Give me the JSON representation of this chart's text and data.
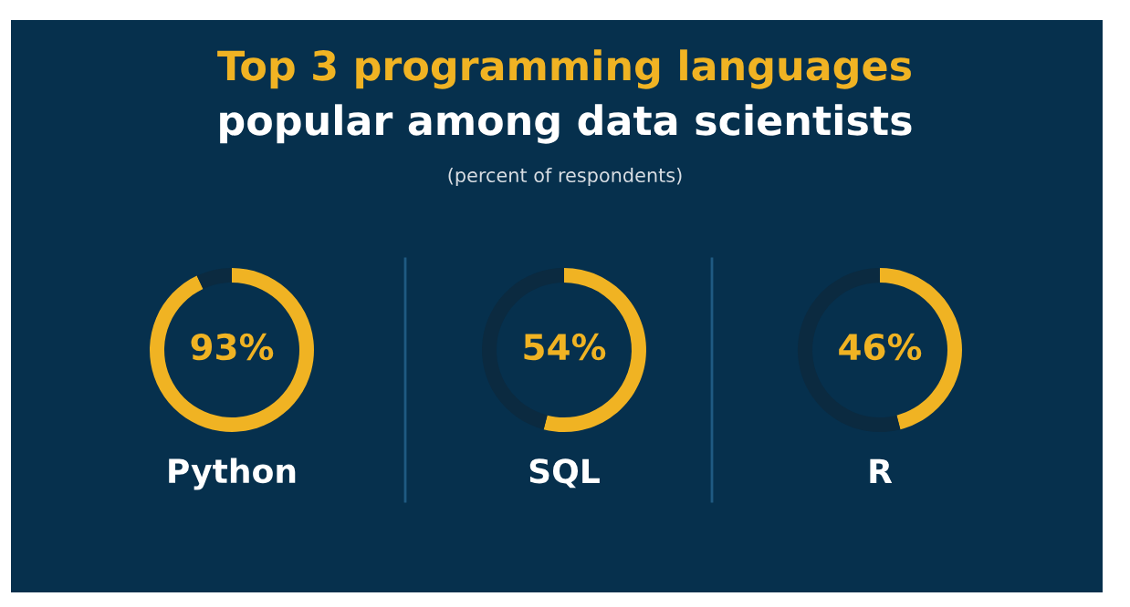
{
  "chart_data": [
    {
      "type": "other",
      "title": "Top 3 programming languages",
      "subtitle": "popular among data scientists",
      "annotations": [
        "(percent of respondents)"
      ]
    },
    {
      "type": "donut",
      "categories": [
        "Python",
        null
      ],
      "values": [
        93,
        7
      ],
      "colors": [
        "#f0b323",
        "#0b2a40"
      ],
      "value_labels": [
        "93%",
        null
      ]
    },
    {
      "type": "donut",
      "categories": [
        "SQL",
        null
      ],
      "values": [
        54,
        46
      ],
      "colors": [
        "#f0b323",
        "#0b2a40"
      ],
      "value_labels": [
        "54%",
        null
      ]
    },
    {
      "type": "donut",
      "categories": [
        "R",
        null
      ],
      "values": [
        46,
        54
      ],
      "colors": [
        "#f0b323",
        "#0b2a40"
      ],
      "value_labels": [
        "46%",
        null
      ]
    }
  ]
}
